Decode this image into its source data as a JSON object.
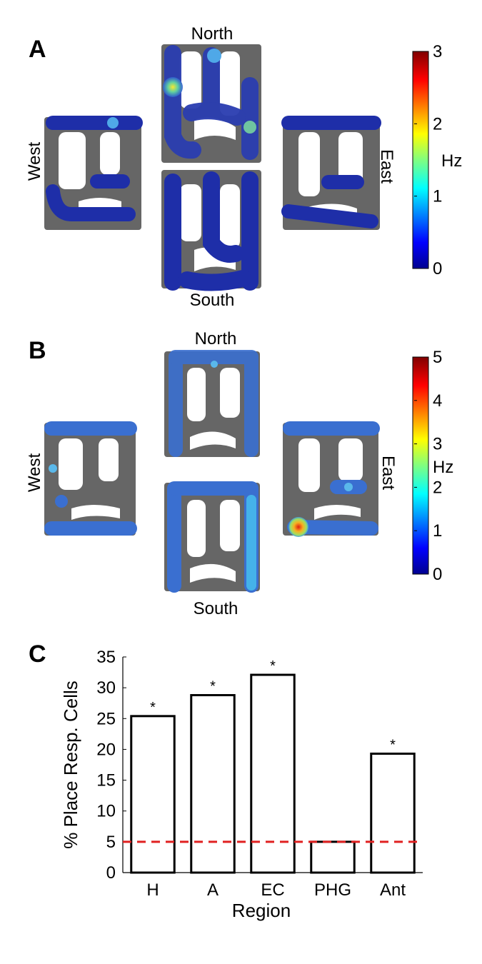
{
  "panels": {
    "A": {
      "letter": "A",
      "directions": {
        "north": "North",
        "south": "South",
        "west": "West",
        "east": "East"
      },
      "colorbar": {
        "ticks": [
          "0",
          "1",
          "2",
          "3"
        ],
        "unit": "Hz"
      },
      "colors": {
        "maze": "#666666",
        "low": "#1e2ea8",
        "mid": "#3fa4e8",
        "high": "#f2c828"
      }
    },
    "B": {
      "letter": "B",
      "directions": {
        "north": "North",
        "south": "South",
        "west": "West",
        "east": "East"
      },
      "colorbar": {
        "ticks": [
          "0",
          "1",
          "2",
          "3",
          "4",
          "5"
        ],
        "unit": "Hz"
      },
      "colors": {
        "maze": "#666666",
        "low": "#2f5fc8",
        "mid": "#45b2ea",
        "high": "#f28a22"
      }
    },
    "C": {
      "letter": "C"
    }
  },
  "chart_data": {
    "type": "bar",
    "categories": [
      "H",
      "A",
      "EC",
      "PHG",
      "Ant"
    ],
    "values": [
      25.4,
      28.8,
      32.1,
      5.0,
      19.3
    ],
    "significance": [
      "*",
      "*",
      "*",
      "",
      "*"
    ],
    "xlabel": "Region",
    "ylabel": "% Place Resp. Cells",
    "ylim": [
      0,
      35
    ],
    "yticks": [
      0,
      5,
      10,
      15,
      20,
      25,
      30,
      35
    ],
    "chance_line": {
      "value": 5,
      "color": "#e02020",
      "style": "dashed"
    },
    "grid": false,
    "bar_fill": "#ffffff",
    "bar_edge": "#000000"
  }
}
